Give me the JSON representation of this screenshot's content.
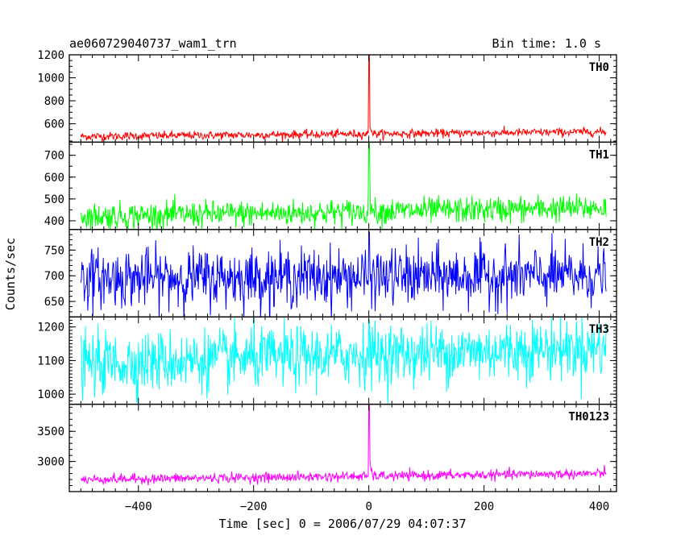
{
  "header": {
    "title": "ae060729040737_wam1_trn",
    "bin_time": "Bin time: 1.0 s"
  },
  "axes": {
    "xlabel": "Time [sec] 0 = 2006/07/29 04:07:37",
    "ylabel": "Counts/sec"
  },
  "chart_data": {
    "type": "line",
    "xlim": [
      -520,
      430
    ],
    "x_ticks": [
      -400,
      -200,
      0,
      200,
      400
    ],
    "x_tick_labels": [
      "−400",
      "−200",
      "0",
      "200",
      "400"
    ],
    "x_range_data": [
      -500,
      412
    ],
    "bin_time_s": 1.0,
    "grid": false,
    "panels": [
      {
        "name": "TH0",
        "color": "#ff0000",
        "ylim": [
          440,
          1200
        ],
        "y_ticks": [
          600,
          800,
          1000,
          1200
        ],
        "baseline_start": 490,
        "baseline_end": 530,
        "noise": 18,
        "peak": 1200,
        "excess_after_peak": 40
      },
      {
        "name": "TH1",
        "color": "#00ff00",
        "ylim": [
          360,
          760
        ],
        "y_ticks": [
          400,
          500,
          600,
          700
        ],
        "baseline_start": 420,
        "baseline_end": 460,
        "noise": 30,
        "peak": 760,
        "excess_after_peak": 45
      },
      {
        "name": "TH2",
        "color": "#0000ff",
        "ylim": [
          620,
          790
        ],
        "y_ticks": [
          650,
          700,
          750
        ],
        "baseline_start": 695,
        "baseline_end": 700,
        "noise": 28,
        "peak": 785,
        "excess_after_peak": 0
      },
      {
        "name": "TH3",
        "color": "#00ffff",
        "ylim": [
          970,
          1230
        ],
        "y_ticks": [
          1000,
          1100,
          1200
        ],
        "baseline_start": 1090,
        "baseline_end": 1140,
        "noise": 45,
        "peak": 1220,
        "excess_after_peak": 0
      },
      {
        "name": "TH0123",
        "color": "#ff00ff",
        "ylim": [
          2500,
          3950
        ],
        "y_ticks": [
          3000,
          3500
        ],
        "baseline_start": 2700,
        "baseline_end": 2800,
        "noise": 40,
        "peak": 3950,
        "excess_after_peak": 120
      }
    ]
  }
}
